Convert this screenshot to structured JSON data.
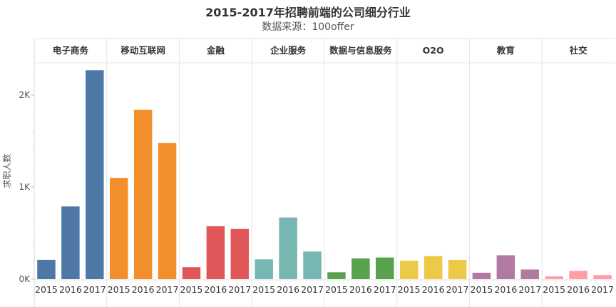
{
  "chart_data": {
    "type": "bar",
    "title": "2015-2017年招聘前端的公司细分行业",
    "subtitle": "数据来源：100offer",
    "ylabel": "求职人数",
    "xlabel": "",
    "ylim": [
      0,
      2350
    ],
    "yticks": [
      {
        "value": 0,
        "label": "0K"
      },
      {
        "value": 1000,
        "label": "1K"
      },
      {
        "value": 2000,
        "label": "2K"
      }
    ],
    "years": [
      "2015",
      "2016",
      "2017"
    ],
    "legend": "none",
    "grid": false,
    "panels": [
      {
        "name": "电子商务",
        "color": "#4e79a7",
        "values": [
          210,
          790,
          2270
        ]
      },
      {
        "name": "移动互联网",
        "color": "#f28e2b",
        "values": [
          1100,
          1840,
          1480
        ]
      },
      {
        "name": "金融",
        "color": "#e15759",
        "values": [
          130,
          575,
          545
        ]
      },
      {
        "name": "企业服务",
        "color": "#76b7b2",
        "values": [
          215,
          670,
          300
        ]
      },
      {
        "name": "数据与信息服务",
        "color": "#59a14f",
        "values": [
          75,
          225,
          235
        ]
      },
      {
        "name": "O2O",
        "color": "#edc948",
        "values": [
          200,
          250,
          210
        ]
      },
      {
        "name": "教育",
        "color": "#b07aa1",
        "values": [
          70,
          260,
          105
        ]
      },
      {
        "name": "社交",
        "color": "#ff9da7",
        "values": [
          30,
          90,
          45
        ]
      }
    ]
  }
}
